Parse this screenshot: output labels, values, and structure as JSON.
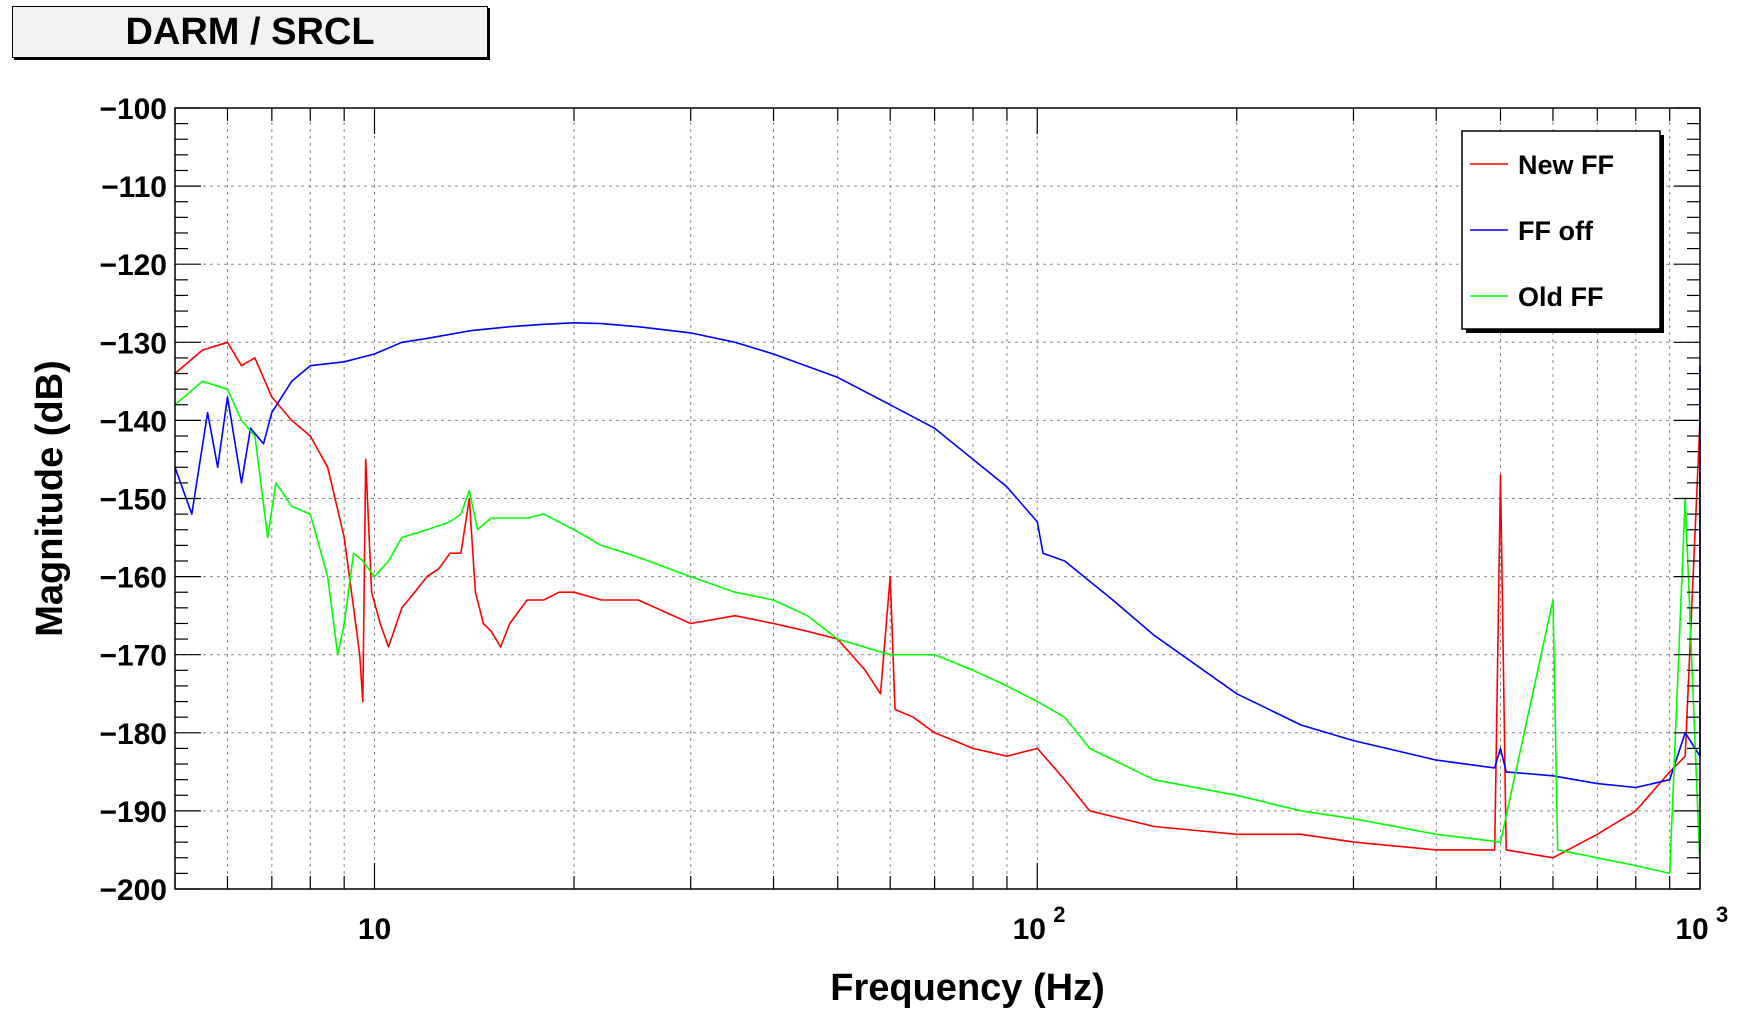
{
  "title": "DARM / SRCL",
  "chart_data": {
    "type": "line",
    "title": "DARM / SRCL",
    "xlabel": "Frequency (Hz)",
    "ylabel": "Magnitude (dB)",
    "xscale": "log",
    "xlim": [
      5,
      1000
    ],
    "ylim": [
      -200,
      -100
    ],
    "x_ticks": [
      {
        "value": 10,
        "label": "10"
      },
      {
        "value": 100,
        "label": "10",
        "exp": "2"
      },
      {
        "value": 1000,
        "label": "10",
        "exp": "3"
      }
    ],
    "y_ticks": [
      -100,
      -110,
      -120,
      -130,
      -140,
      -150,
      -160,
      -170,
      -180,
      -190,
      -200
    ],
    "y_tick_labels": [
      "−100",
      "−110",
      "−120",
      "−130",
      "−140",
      "−150",
      "−160",
      "−170",
      "−180",
      "−190",
      "−200"
    ],
    "grid": true,
    "legend_position": "top-right",
    "series": [
      {
        "name": "New FF",
        "color": "#ff0000",
        "x": [
          5,
          5.5,
          6,
          6.3,
          6.6,
          7,
          7.5,
          8,
          8.5,
          9,
          9.3,
          9.5,
          9.6,
          9.7,
          9.9,
          10.2,
          10.5,
          11,
          11.5,
          12,
          12.5,
          13,
          13.5,
          13.9,
          14.2,
          14.6,
          15,
          15.5,
          16,
          17,
          18,
          19,
          20,
          22,
          25,
          30,
          35,
          40,
          45,
          50,
          55,
          58,
          60,
          61,
          65,
          70,
          80,
          90,
          100,
          110,
          120,
          150,
          200,
          250,
          300,
          400,
          490,
          500,
          510,
          600,
          700,
          800,
          900,
          950,
          1000
        ],
        "y": [
          -134,
          -131,
          -130,
          -133,
          -132,
          -137,
          -140,
          -142,
          -146,
          -155,
          -164,
          -170,
          -176,
          -145,
          -162,
          -166,
          -169,
          -164,
          -162,
          -160,
          -159,
          -157,
          -157,
          -150,
          -162,
          -166,
          -167,
          -169,
          -166,
          -163,
          -163,
          -162,
          -162,
          -163,
          -163,
          -166,
          -165,
          -166,
          -167,
          -168,
          -172,
          -175,
          -160,
          -177,
          -178,
          -180,
          -182,
          -183,
          -182,
          -186,
          -190,
          -192,
          -193,
          -193,
          -194,
          -195,
          -195,
          -147,
          -195,
          -196,
          -193,
          -190,
          -185,
          -183,
          -140
        ]
      },
      {
        "name": "FF off",
        "color": "#0000ff",
        "x": [
          5,
          5.3,
          5.6,
          5.8,
          6,
          6.3,
          6.5,
          6.8,
          7,
          7.5,
          8,
          9,
          10,
          11,
          12,
          14,
          16,
          18,
          20,
          22,
          25,
          30,
          35,
          40,
          50,
          60,
          70,
          80,
          90,
          100,
          102,
          110,
          130,
          150,
          200,
          250,
          300,
          400,
          490,
          500,
          510,
          600,
          700,
          800,
          900,
          950,
          1000,
          1000
        ],
        "y": [
          -146,
          -152,
          -139,
          -146,
          -137,
          -148,
          -141,
          -143,
          -139,
          -135,
          -133,
          -132.5,
          -131.5,
          -130,
          -129.5,
          -128.5,
          -128,
          -127.7,
          -127.5,
          -127.6,
          -128,
          -128.8,
          -130,
          -131.5,
          -134.5,
          -138,
          -141,
          -145,
          -148.5,
          -153,
          -157,
          -158,
          -163,
          -167.5,
          -175,
          -179,
          -181,
          -183.5,
          -184.5,
          -182,
          -185,
          -185.5,
          -186.5,
          -187,
          -186,
          -180,
          -183,
          -133
        ]
      },
      {
        "name": "Old FF",
        "color": "#00ff00",
        "x": [
          5,
          5.5,
          6,
          6.3,
          6.6,
          6.9,
          7.1,
          7.5,
          8,
          8.5,
          8.8,
          9,
          9.3,
          9.6,
          10,
          10.5,
          11,
          12,
          13,
          13.5,
          13.9,
          14.3,
          15,
          16,
          17,
          18,
          20,
          22,
          25,
          30,
          35,
          40,
          45,
          50,
          60,
          70,
          80,
          90,
          100,
          110,
          120,
          150,
          200,
          250,
          300,
          400,
          500,
          600,
          610,
          700,
          800,
          900,
          950,
          1000
        ],
        "y": [
          -138,
          -135,
          -136,
          -140,
          -142,
          -155,
          -148,
          -151,
          -152,
          -160,
          -170,
          -166,
          -157,
          -158,
          -160,
          -158,
          -155,
          -154,
          -153,
          -152,
          -149,
          -154,
          -152.5,
          -152.5,
          -152.5,
          -152,
          -154,
          -156,
          -157.5,
          -160,
          -162,
          -163,
          -165,
          -168,
          -170,
          -170,
          -172,
          -174,
          -176,
          -178,
          -182,
          -186,
          -188,
          -190,
          -191,
          -193,
          -194,
          -163,
          -195,
          -196,
          -197,
          -198,
          -150,
          -197
        ]
      }
    ]
  }
}
